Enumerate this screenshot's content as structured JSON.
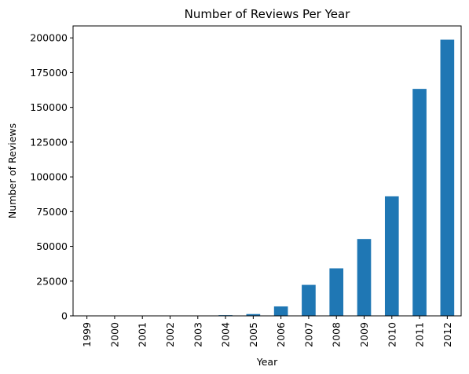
{
  "chart_data": {
    "type": "bar",
    "title": "Number of Reviews Per Year",
    "xlabel": "Year",
    "ylabel": "Number of Reviews",
    "categories": [
      "1999",
      "2000",
      "2001",
      "2002",
      "2003",
      "2004",
      "2005",
      "2006",
      "2007",
      "2008",
      "2009",
      "2010",
      "2011",
      "2012"
    ],
    "values": [
      6,
      32,
      13,
      20,
      130,
      500,
      1300,
      6800,
      22300,
      34200,
      55300,
      86000,
      163300,
      198700
    ],
    "ylim": [
      0,
      208600
    ],
    "yticks": [
      0,
      25000,
      50000,
      75000,
      100000,
      125000,
      150000,
      175000,
      200000
    ],
    "ytick_labels": [
      "0",
      "25000",
      "50000",
      "75000",
      "100000",
      "125000",
      "150000",
      "175000",
      "200000"
    ],
    "grid": false,
    "legend": "none",
    "colors": {
      "bar": "#1f77b4",
      "axis": "#000000"
    }
  }
}
